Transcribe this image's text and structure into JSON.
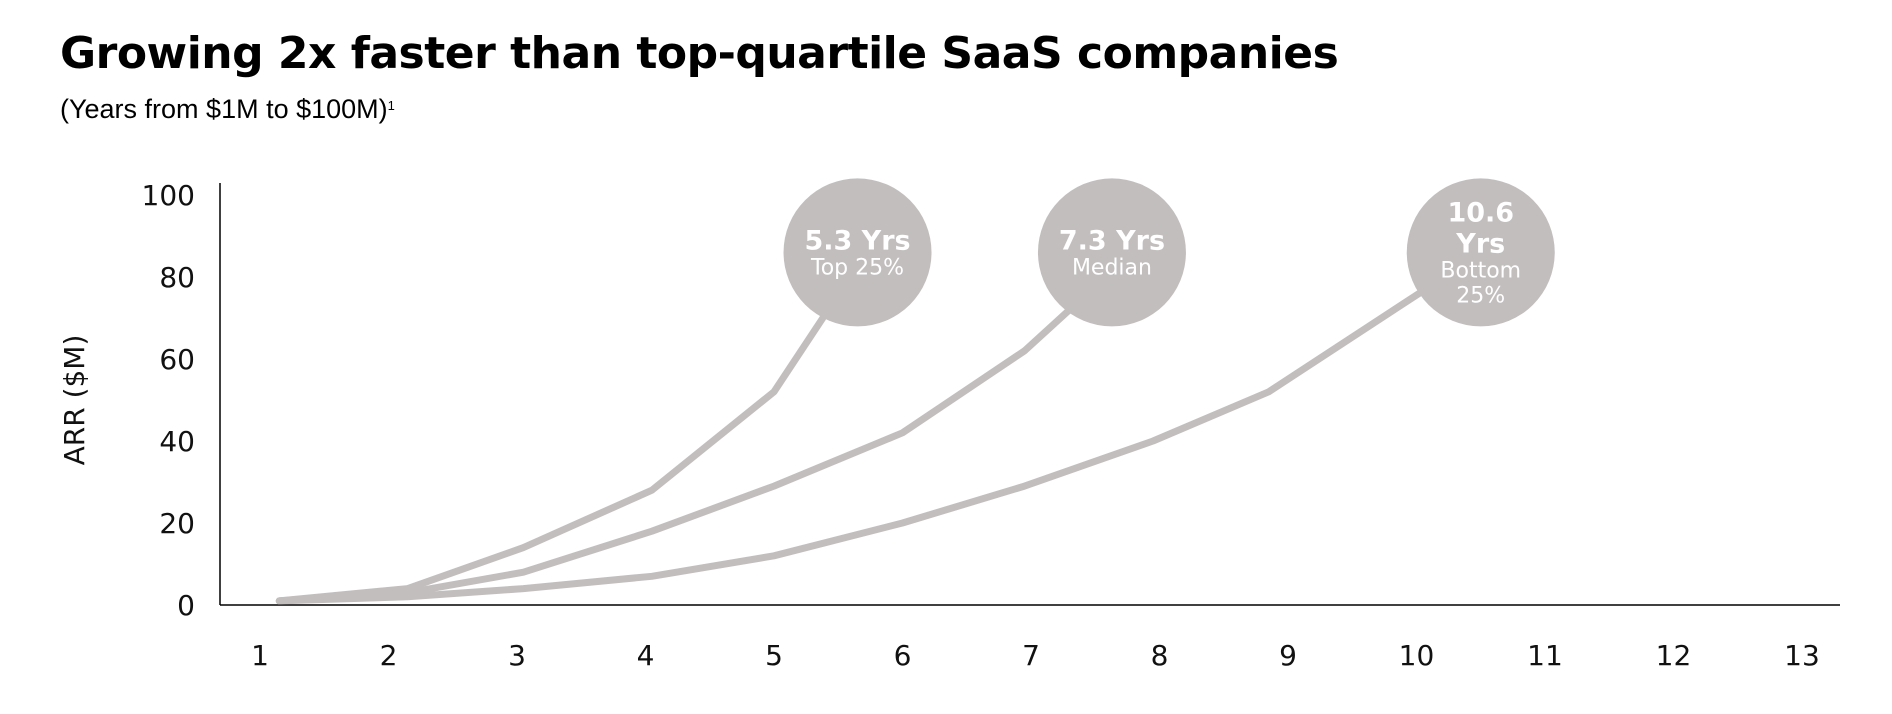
{
  "chart_data": {
    "type": "line",
    "title": "Growing 2x faster than top-quartile SaaS companies",
    "subtitle": "(Years from $1M to $100M)",
    "subtitle_footnote": "1",
    "ylabel": "ARR ($M)",
    "xlabel": "",
    "ylim": [
      0,
      100
    ],
    "xlim": [
      1,
      13
    ],
    "yticks": [
      0,
      20,
      40,
      60,
      80,
      100
    ],
    "xticks": [
      1,
      2,
      3,
      4,
      5,
      6,
      7,
      8,
      9,
      10,
      11,
      12,
      13
    ],
    "grid": false,
    "line_color": "#c2bebe",
    "series": [
      {
        "name": "Top 25%",
        "x": [
          1.15,
          2.15,
          3.05,
          4.05,
          5.0,
          5.38
        ],
        "values": [
          1,
          4,
          14,
          28,
          52,
          70
        ],
        "bubble": {
          "value": "5.3 Yrs",
          "label": [
            "Top 25%"
          ],
          "cx": 5.65,
          "cy": 86
        }
      },
      {
        "name": "Median",
        "x": [
          1.15,
          2.15,
          3.05,
          4.05,
          5.0,
          6.0,
          6.95,
          7.37
        ],
        "values": [
          1,
          3,
          8,
          18,
          29,
          42,
          62,
          74
        ],
        "bubble": {
          "value": "7.3 Yrs",
          "label": [
            "Median"
          ],
          "cx": 7.63,
          "cy": 86
        }
      },
      {
        "name": "Bottom 25%",
        "x": [
          1.15,
          2.15,
          3.05,
          4.05,
          5.0,
          6.0,
          6.95,
          7.95,
          8.85,
          10.02
        ],
        "values": [
          1,
          2,
          4,
          7,
          12,
          20,
          29,
          40,
          52,
          76
        ],
        "bubble": {
          "value": "10.6 Yrs",
          "label": [
            "Bottom",
            "25%"
          ],
          "cx": 10.5,
          "cy": 86
        }
      }
    ]
  }
}
